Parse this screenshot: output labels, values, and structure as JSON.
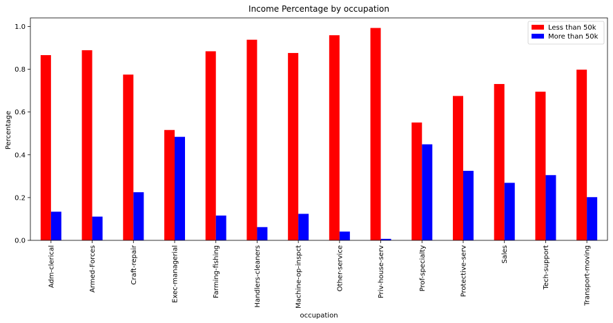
{
  "chart_data": {
    "type": "bar",
    "title": "Income Percentage by occupation",
    "xlabel": "occupation",
    "ylabel": "Percentage",
    "ylim": [
      0,
      1.04
    ],
    "yticks": [
      "0.0",
      "0.2",
      "0.4",
      "0.6",
      "0.8",
      "1.0"
    ],
    "legend_position": "top-right",
    "grid": false,
    "categories": [
      "Adm-clerical",
      "Armed-Forces",
      "Craft-repair",
      "Exec-managerial",
      "Farming-fishing",
      "Handlers-cleaners",
      "Machine-op-inspct",
      "Other-service",
      "Priv-house-serv",
      "Prof-specialty",
      "Protective-serv",
      "Sales",
      "Tech-support",
      "Transport-moving"
    ],
    "series": [
      {
        "name": "Less than 50k",
        "color": "#ff0000",
        "values": [
          0.866,
          0.889,
          0.775,
          0.516,
          0.884,
          0.938,
          0.876,
          0.959,
          0.993,
          0.551,
          0.675,
          0.731,
          0.695,
          0.798
        ]
      },
      {
        "name": "More than 50k",
        "color": "#0000ff",
        "values": [
          0.134,
          0.111,
          0.225,
          0.484,
          0.116,
          0.062,
          0.124,
          0.041,
          0.007,
          0.449,
          0.325,
          0.269,
          0.305,
          0.202
        ]
      }
    ]
  }
}
